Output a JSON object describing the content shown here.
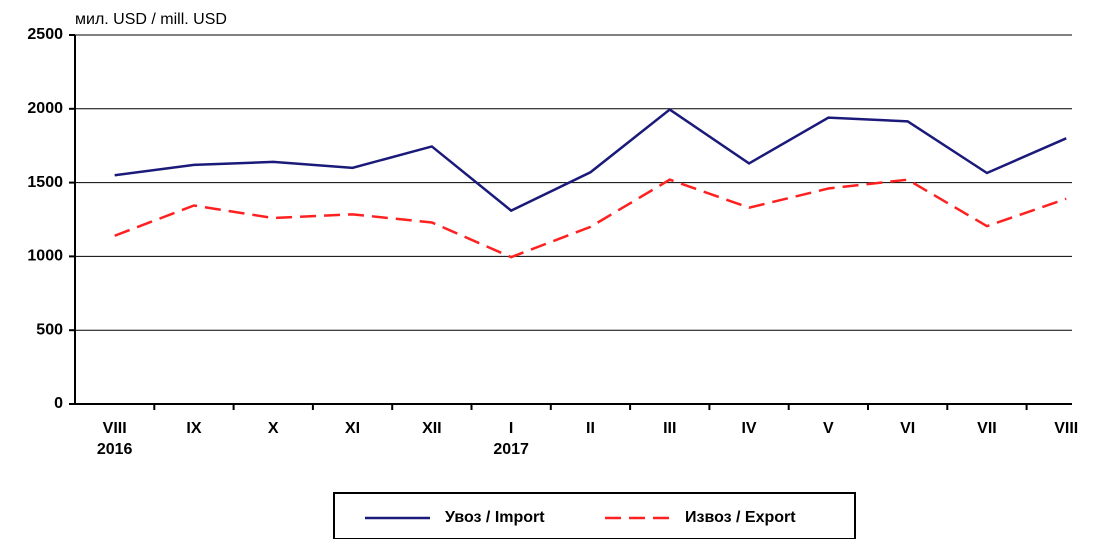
{
  "chart_data": {
    "type": "line",
    "y_label": "мил. USD / mill. USD",
    "categories": [
      "VIII",
      "IX",
      "X",
      "XI",
      "XII",
      "I",
      "II",
      "III",
      "IV",
      "V",
      "VI",
      "VII",
      "VIII"
    ],
    "category_years": [
      "2016",
      null,
      null,
      null,
      null,
      "2017",
      null,
      null,
      null,
      null,
      null,
      null,
      null
    ],
    "series": [
      {
        "name": "Увоз / Import",
        "color": "#1a1a7a",
        "dash": "solid",
        "values": [
          1550,
          1620,
          1640,
          1600,
          1745,
          1310,
          1570,
          1995,
          1630,
          1940,
          1915,
          1565,
          1800
        ]
      },
      {
        "name": "Извоз / Export",
        "color": "#ff2020",
        "dash": "dashed",
        "values": [
          1140,
          1345,
          1260,
          1285,
          1230,
          995,
          1200,
          1520,
          1330,
          1460,
          1520,
          1205,
          1390
        ]
      }
    ],
    "ylim": [
      0,
      2500
    ],
    "yticks": [
      0,
      500,
      1000,
      1500,
      2000,
      2500
    ],
    "grid": true,
    "legend": "bottom"
  }
}
